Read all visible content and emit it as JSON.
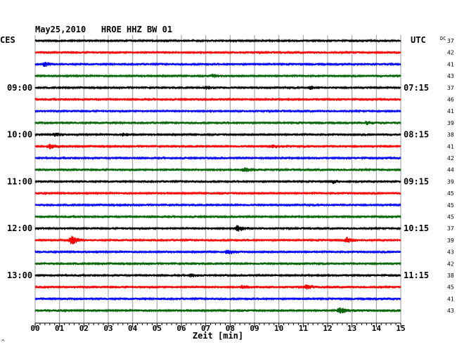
{
  "chart_data": {
    "type": "line",
    "title": "May25,2010   HROE HHZ BW 01",
    "left_timezone_label": "CES",
    "right_timezone_label": "UTC",
    "dc_label": "DC",
    "xlabel": "Zeit [min]",
    "xlim": [
      0,
      15
    ],
    "x_ticks": [
      "00",
      "01",
      "02",
      "03",
      "04",
      "05",
      "06",
      "07",
      "08",
      "09",
      "10",
      "11",
      "12",
      "13",
      "14",
      "15"
    ],
    "grid": true,
    "trace_colors": [
      "#000000",
      "#ff0000",
      "#0000ff",
      "#006400"
    ],
    "left_hour_labels": [
      {
        "row": 4,
        "label": "09:00"
      },
      {
        "row": 8,
        "label": "10:00"
      },
      {
        "row": 12,
        "label": "11:00"
      },
      {
        "row": 16,
        "label": "12:00"
      },
      {
        "row": 20,
        "label": "13:00"
      }
    ],
    "right_hour_labels": [
      {
        "row": 4,
        "label": "07:15"
      },
      {
        "row": 8,
        "label": "08:15"
      },
      {
        "row": 12,
        "label": "09:15"
      },
      {
        "row": 16,
        "label": "10:15"
      },
      {
        "row": 20,
        "label": "11:15"
      }
    ],
    "dc_offsets": [
      37,
      42,
      41,
      43,
      37,
      46,
      41,
      39,
      38,
      41,
      42,
      44,
      39,
      45,
      45,
      45,
      37,
      39,
      43,
      42,
      38,
      45,
      41,
      43
    ],
    "events": [
      {
        "row": 2,
        "minute": 0.4,
        "amp": 3
      },
      {
        "row": 3,
        "minute": 7.3,
        "amp": 2
      },
      {
        "row": 4,
        "minute": 7.0,
        "amp": 2
      },
      {
        "row": 4,
        "minute": 11.3,
        "amp": 2
      },
      {
        "row": 7,
        "minute": 13.6,
        "amp": 2
      },
      {
        "row": 8,
        "minute": 0.8,
        "amp": 2
      },
      {
        "row": 8,
        "minute": 3.6,
        "amp": 2
      },
      {
        "row": 9,
        "minute": 0.6,
        "amp": 3
      },
      {
        "row": 9,
        "minute": 9.7,
        "amp": 2
      },
      {
        "row": 11,
        "minute": 8.6,
        "amp": 3
      },
      {
        "row": 12,
        "minute": 12.2,
        "amp": 2
      },
      {
        "row": 16,
        "minute": 8.3,
        "amp": 4
      },
      {
        "row": 17,
        "minute": 1.5,
        "amp": 6
      },
      {
        "row": 17,
        "minute": 12.8,
        "amp": 4
      },
      {
        "row": 18,
        "minute": 7.9,
        "amp": 3
      },
      {
        "row": 20,
        "minute": 6.4,
        "amp": 2
      },
      {
        "row": 21,
        "minute": 8.5,
        "amp": 2
      },
      {
        "row": 21,
        "minute": 11.1,
        "amp": 3
      },
      {
        "row": 23,
        "minute": 12.5,
        "amp": 4
      }
    ]
  },
  "footer_mark": "^"
}
